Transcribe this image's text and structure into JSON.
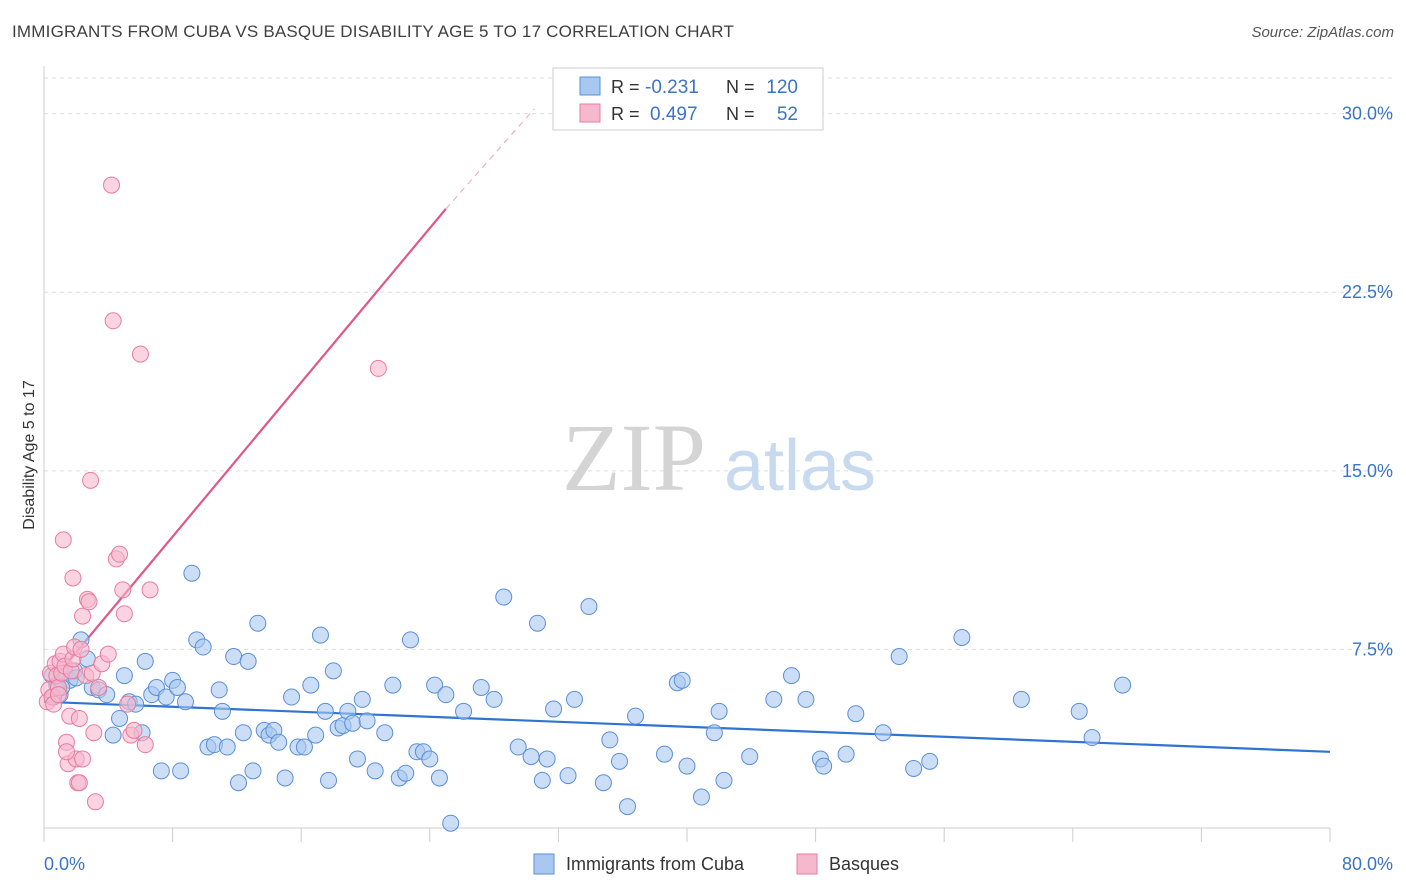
{
  "header": {
    "title": "IMMIGRANTS FROM CUBA VS BASQUE DISABILITY AGE 5 TO 17 CORRELATION CHART",
    "source": "Source: ZipAtlas.com"
  },
  "watermark": {
    "zip": "ZIP",
    "atlas": "atlas"
  },
  "legend_stats": {
    "rows": [
      {
        "r_label": "R =",
        "r_value": "-0.231",
        "n_label": "N =",
        "n_value": "120"
      },
      {
        "r_label": "R =",
        "r_value": "0.497",
        "n_label": "N =",
        "n_value": "52"
      }
    ]
  },
  "colors": {
    "blue_fill": "#a8c8f0",
    "blue_stroke": "#5a8fd8",
    "blue_line": "#2f74d0",
    "pink_fill": "#f6b8cc",
    "pink_stroke": "#e87ca0",
    "pink_line": "#e0578a",
    "value_text": "#3b74c6",
    "axis_text": "#3b74c6",
    "grid": "#dddddd"
  },
  "chart_data": {
    "type": "scatter",
    "title": "IMMIGRANTS FROM CUBA VS BASQUE DISABILITY AGE 5 TO 17 CORRELATION CHART",
    "xlabel": "",
    "ylabel": "Disability Age 5 to 17",
    "xlim": [
      0,
      80
    ],
    "ylim": [
      0,
      32
    ],
    "x_tick_labels": [
      "0.0%",
      "80.0%"
    ],
    "y_ticks": [
      7.5,
      15.0,
      22.5,
      30.0
    ],
    "y_tick_labels": [
      "7.5%",
      "15.0%",
      "22.5%",
      "30.0%"
    ],
    "grid": true,
    "legend": "bottom-center",
    "series": [
      {
        "name": "Immigrants from Cuba",
        "color": "#a8c8f0",
        "trend": {
          "x": [
            0,
            80
          ],
          "y": [
            5.3,
            3.2
          ]
        },
        "points": [
          [
            0.5,
            6.4
          ],
          [
            0.8,
            6.0
          ],
          [
            1.0,
            5.6
          ],
          [
            1.3,
            6.5
          ],
          [
            1.6,
            6.2
          ],
          [
            1.9,
            6.6
          ],
          [
            2.3,
            7.9
          ],
          [
            2.7,
            7.1
          ],
          [
            3.0,
            5.9
          ],
          [
            3.4,
            5.8
          ],
          [
            3.9,
            5.6
          ],
          [
            4.3,
            3.9
          ],
          [
            4.7,
            4.6
          ],
          [
            5.0,
            6.4
          ],
          [
            5.3,
            5.3
          ],
          [
            5.7,
            5.2
          ],
          [
            6.1,
            4.0
          ],
          [
            6.3,
            7.0
          ],
          [
            6.7,
            5.6
          ],
          [
            7.0,
            5.9
          ],
          [
            7.3,
            2.4
          ],
          [
            7.6,
            5.5
          ],
          [
            8.0,
            6.2
          ],
          [
            8.3,
            5.9
          ],
          [
            8.5,
            2.4
          ],
          [
            8.8,
            5.3
          ],
          [
            9.2,
            10.7
          ],
          [
            9.5,
            7.9
          ],
          [
            9.9,
            7.6
          ],
          [
            10.2,
            3.4
          ],
          [
            10.6,
            3.5
          ],
          [
            10.9,
            5.8
          ],
          [
            11.1,
            4.9
          ],
          [
            11.4,
            3.4
          ],
          [
            11.8,
            7.2
          ],
          [
            12.1,
            1.9
          ],
          [
            12.4,
            4.0
          ],
          [
            12.7,
            7.0
          ],
          [
            13.0,
            2.4
          ],
          [
            13.3,
            8.6
          ],
          [
            13.7,
            4.1
          ],
          [
            14.0,
            3.9
          ],
          [
            14.3,
            4.1
          ],
          [
            14.6,
            3.6
          ],
          [
            15.0,
            2.1
          ],
          [
            15.4,
            5.5
          ],
          [
            15.8,
            3.4
          ],
          [
            16.2,
            3.4
          ],
          [
            16.6,
            6.0
          ],
          [
            16.9,
            3.9
          ],
          [
            17.2,
            8.1
          ],
          [
            17.5,
            4.9
          ],
          [
            17.7,
            2.0
          ],
          [
            18.0,
            6.6
          ],
          [
            18.3,
            4.2
          ],
          [
            18.6,
            4.3
          ],
          [
            18.9,
            4.9
          ],
          [
            19.2,
            4.4
          ],
          [
            19.5,
            2.9
          ],
          [
            19.8,
            5.4
          ],
          [
            20.1,
            4.5
          ],
          [
            20.6,
            2.4
          ],
          [
            21.2,
            4.0
          ],
          [
            21.7,
            6.0
          ],
          [
            22.1,
            2.1
          ],
          [
            22.5,
            2.3
          ],
          [
            22.8,
            7.9
          ],
          [
            23.2,
            3.2
          ],
          [
            23.6,
            3.2
          ],
          [
            24.0,
            2.9
          ],
          [
            24.3,
            6.0
          ],
          [
            24.6,
            2.1
          ],
          [
            25.0,
            5.6
          ],
          [
            25.3,
            0.2
          ],
          [
            26.1,
            4.9
          ],
          [
            27.2,
            5.9
          ],
          [
            28.0,
            5.4
          ],
          [
            28.6,
            9.7
          ],
          [
            29.5,
            3.4
          ],
          [
            30.3,
            3.0
          ],
          [
            30.7,
            8.6
          ],
          [
            31.0,
            2.0
          ],
          [
            31.3,
            2.9
          ],
          [
            31.7,
            5.0
          ],
          [
            32.6,
            2.2
          ],
          [
            33.0,
            5.4
          ],
          [
            33.9,
            9.3
          ],
          [
            34.8,
            1.9
          ],
          [
            35.2,
            3.7
          ],
          [
            35.8,
            2.8
          ],
          [
            36.3,
            0.9
          ],
          [
            36.8,
            4.7
          ],
          [
            38.6,
            3.1
          ],
          [
            39.4,
            6.1
          ],
          [
            39.7,
            6.2
          ],
          [
            40.0,
            2.6
          ],
          [
            40.9,
            1.3
          ],
          [
            41.7,
            4.0
          ],
          [
            42.0,
            4.9
          ],
          [
            42.3,
            2.0
          ],
          [
            43.9,
            3.0
          ],
          [
            45.4,
            5.4
          ],
          [
            46.5,
            6.4
          ],
          [
            47.4,
            5.4
          ],
          [
            48.3,
            2.9
          ],
          [
            48.5,
            2.6
          ],
          [
            49.9,
            3.1
          ],
          [
            50.5,
            4.8
          ],
          [
            52.2,
            4.0
          ],
          [
            53.2,
            7.2
          ],
          [
            54.1,
            2.5
          ],
          [
            55.1,
            2.8
          ],
          [
            57.1,
            8.0
          ],
          [
            60.8,
            5.4
          ],
          [
            64.4,
            4.9
          ],
          [
            65.2,
            3.8
          ],
          [
            67.1,
            6.0
          ],
          [
            0.6,
            5.5
          ],
          [
            1.1,
            5.9
          ],
          [
            2.0,
            6.3
          ]
        ]
      },
      {
        "name": "Basques",
        "color": "#f6b8cc",
        "trend": {
          "x": [
            0.3,
            25
          ],
          "y": [
            6.0,
            26.0
          ]
        },
        "trend_dashed": {
          "x": [
            25,
            30.5
          ],
          "y": [
            26.0,
            30.2
          ]
        },
        "points": [
          [
            0.2,
            5.3
          ],
          [
            0.3,
            5.8
          ],
          [
            0.4,
            6.5
          ],
          [
            0.5,
            5.5
          ],
          [
            0.6,
            5.2
          ],
          [
            0.7,
            6.9
          ],
          [
            0.8,
            6.4
          ],
          [
            0.9,
            5.9
          ],
          [
            1.0,
            7.0
          ],
          [
            1.1,
            6.5
          ],
          [
            1.2,
            7.3
          ],
          [
            1.3,
            6.8
          ],
          [
            1.4,
            3.6
          ],
          [
            1.5,
            2.7
          ],
          [
            1.6,
            4.7
          ],
          [
            1.7,
            6.6
          ],
          [
            1.8,
            7.1
          ],
          [
            1.9,
            7.6
          ],
          [
            2.0,
            2.9
          ],
          [
            2.1,
            1.9
          ],
          [
            2.2,
            4.6
          ],
          [
            2.3,
            7.5
          ],
          [
            2.4,
            8.9
          ],
          [
            2.6,
            6.4
          ],
          [
            2.7,
            9.6
          ],
          [
            2.8,
            9.5
          ],
          [
            3.0,
            6.5
          ],
          [
            3.2,
            1.1
          ],
          [
            3.4,
            5.9
          ],
          [
            3.6,
            6.9
          ],
          [
            4.0,
            7.3
          ],
          [
            4.2,
            27.0
          ],
          [
            4.3,
            21.3
          ],
          [
            4.5,
            11.3
          ],
          [
            4.7,
            11.5
          ],
          [
            4.9,
            10.0
          ],
          [
            5.0,
            9.0
          ],
          [
            5.2,
            5.2
          ],
          [
            5.4,
            3.9
          ],
          [
            5.6,
            4.1
          ],
          [
            6.0,
            19.9
          ],
          [
            6.3,
            3.5
          ],
          [
            6.6,
            10.0
          ],
          [
            20.8,
            19.3
          ],
          [
            2.9,
            14.6
          ],
          [
            1.2,
            12.1
          ],
          [
            1.8,
            10.5
          ],
          [
            1.4,
            3.2
          ],
          [
            2.4,
            2.9
          ],
          [
            0.9,
            5.6
          ],
          [
            3.1,
            4.0
          ],
          [
            2.2,
            1.9
          ]
        ]
      }
    ]
  },
  "bottom_legend": {
    "items": [
      "Immigrants from Cuba",
      "Basques"
    ]
  }
}
